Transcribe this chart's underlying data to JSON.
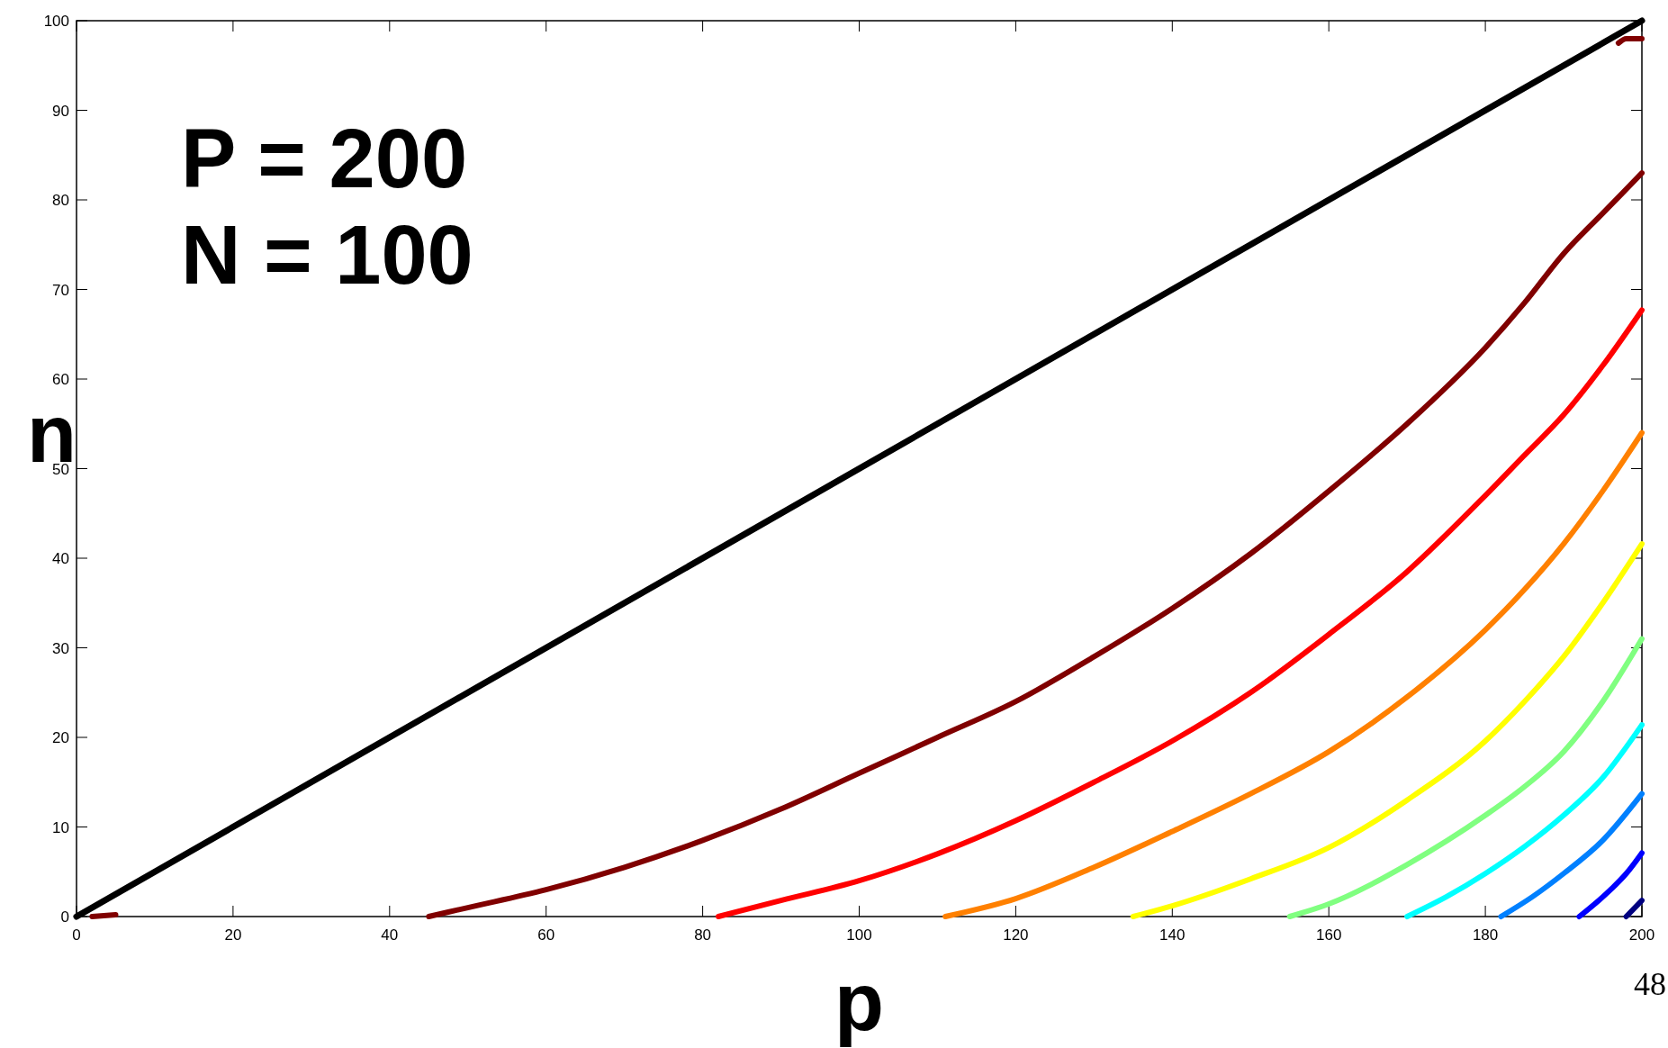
{
  "chart_data": {
    "type": "line",
    "xlabel": "p",
    "ylabel": "n",
    "xlim": [
      0,
      200
    ],
    "ylim": [
      0,
      100
    ],
    "xticks": [
      0,
      20,
      40,
      60,
      80,
      100,
      120,
      140,
      160,
      180,
      200
    ],
    "yticks": [
      0,
      10,
      20,
      30,
      40,
      50,
      60,
      70,
      80,
      90,
      100
    ],
    "grid": false,
    "marker": "none",
    "line_style": "solid",
    "annotations": [
      "P = 200",
      "N = 100",
      "48"
    ],
    "series": [
      {
        "color": "#000000",
        "x": [
          0,
          200
        ],
        "values": [
          0,
          100
        ]
      },
      {
        "color": "#800000",
        "x": [
          45,
          50,
          60,
          70,
          80,
          90,
          100,
          110,
          120,
          130,
          140,
          150,
          160,
          170,
          180,
          185,
          190,
          195,
          200
        ],
        "values": [
          0,
          1,
          3,
          5.5,
          8.5,
          12,
          16,
          20,
          24,
          29,
          34.4,
          40.5,
          47.5,
          55,
          63.5,
          68.5,
          74,
          78.5,
          83
        ]
      },
      {
        "color": "#800000",
        "x": [
          2,
          5
        ],
        "values": [
          0,
          0.2
        ]
      },
      {
        "color": "#800000",
        "x": [
          197,
          198,
          200
        ],
        "values": [
          97.5,
          98,
          98
        ]
      },
      {
        "color": "#ff0000",
        "x": [
          82,
          90,
          100,
          110,
          120,
          130,
          140,
          150,
          160,
          170,
          180,
          185,
          190,
          195,
          200
        ],
        "values": [
          0,
          1.8,
          4,
          7,
          10.7,
          15,
          19.6,
          25,
          31.5,
          38.5,
          47,
          51.5,
          56,
          61.5,
          67.7
        ]
      },
      {
        "color": "#ff8000",
        "x": [
          111,
          120,
          130,
          140,
          150,
          160,
          170,
          180,
          185,
          190,
          195,
          200
        ],
        "values": [
          0,
          2,
          5.5,
          9.5,
          13.7,
          18.4,
          24.5,
          32,
          36.5,
          41.6,
          47.5,
          54
        ]
      },
      {
        "color": "#ffff00",
        "x": [
          135,
          140,
          150,
          160,
          170,
          180,
          185,
          190,
          195,
          200
        ],
        "values": [
          0,
          1.2,
          4.2,
          7.7,
          13,
          19.6,
          24,
          29,
          35,
          41.6
        ]
      },
      {
        "color": "#80ff80",
        "x": [
          155,
          160,
          170,
          180,
          185,
          190,
          195,
          200
        ],
        "values": [
          0,
          1.4,
          5.8,
          11.3,
          14.5,
          18.4,
          24,
          31
        ]
      },
      {
        "color": "#00ffff",
        "x": [
          170,
          175,
          180,
          185,
          190,
          195,
          200
        ],
        "values": [
          0,
          2.2,
          4.8,
          7.8,
          11.3,
          15.5,
          21.4
        ]
      },
      {
        "color": "#0080ff",
        "x": [
          182,
          186,
          190,
          195,
          200
        ],
        "values": [
          0,
          2.2,
          4.8,
          8.5,
          13.7
        ]
      },
      {
        "color": "#0000ff",
        "x": [
          192,
          196,
          198,
          200
        ],
        "values": [
          0,
          3,
          4.8,
          7.1
        ]
      },
      {
        "color": "#000080",
        "x": [
          198,
          200
        ],
        "values": [
          0,
          1.8
        ]
      }
    ]
  }
}
